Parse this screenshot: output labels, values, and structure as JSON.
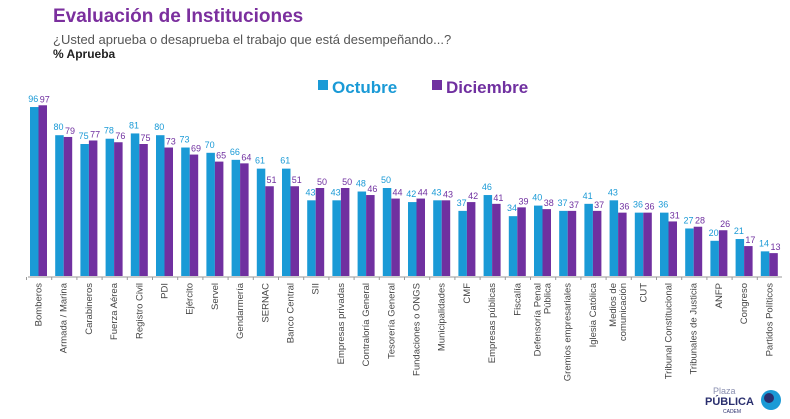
{
  "chart_data": {
    "type": "bar",
    "title": "Evaluación de Instituciones",
    "subtitle": "¿Usted aprueba o desaprueba el trabajo que está desempeñando...?",
    "unit_label": "% Aprueba",
    "categories": [
      "Bomberos",
      "Armada / Marina",
      "Carabineros",
      "Fuerza Aérea",
      "Registro Civil",
      "PDI",
      "Ejército",
      "Servel",
      "Gendarmería",
      "SERNAC",
      "Banco Central",
      "SII",
      "Empresas privadas",
      "Contraloría General",
      "Tesorería General",
      "Fundaciones o ONGS",
      "Municipalidades",
      "CMF",
      "Empresas públicas",
      "Fiscalía",
      "Defensoría Penal|Pública",
      "Gremios empresariales",
      "Iglesia Católica",
      "Medios de|comunicación",
      "CUT",
      "Tribunal Constitucional",
      "Tribunales de Justicia",
      "ANFP",
      "Congreso",
      "Partidos Políticos"
    ],
    "series": [
      {
        "name": "Octubre",
        "color": "#1a9ad6",
        "values": [
          96,
          80,
          75,
          78,
          81,
          80,
          73,
          70,
          66,
          61,
          61,
          43,
          43,
          48,
          50,
          42,
          43,
          37,
          46,
          34,
          40,
          37,
          41,
          43,
          36,
          36,
          27,
          20,
          21,
          14
        ]
      },
      {
        "name": "Diciembre",
        "color": "#7030a0",
        "values": [
          97,
          79,
          77,
          76,
          75,
          73,
          69,
          65,
          64,
          51,
          51,
          50,
          50,
          46,
          44,
          44,
          43,
          42,
          41,
          39,
          38,
          37,
          37,
          36,
          36,
          31,
          28,
          26,
          17,
          13
        ]
      }
    ],
    "ylim": [
      0,
      100
    ],
    "grid": false,
    "legend": "top-center",
    "data_labels": true
  },
  "logo": {
    "text_top": "Plaza",
    "text_main": "PÚBLICA",
    "text_sub": "CADEM"
  }
}
